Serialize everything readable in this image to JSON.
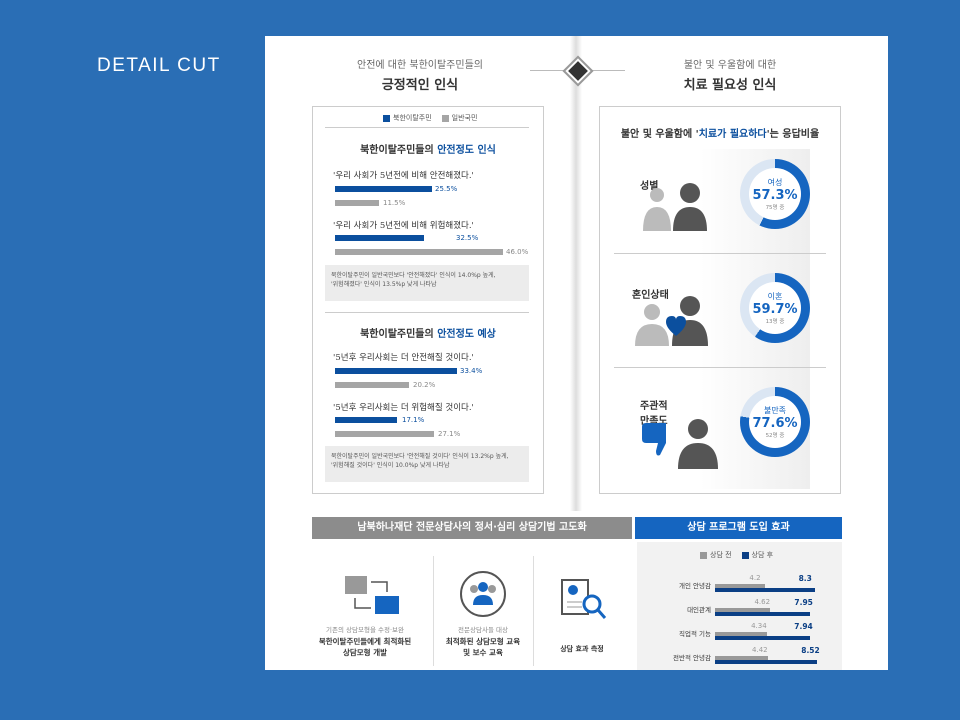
{
  "detail_label": "DETAIL  CUT",
  "colors": {
    "background": "#2a6eb5",
    "nk": "#0b4f9e",
    "general": "#a5a5a5",
    "band_gray": "#8c8c8c",
    "band_blue": "#1565c0"
  },
  "left_header": {
    "sub": "안전에 대한 북한이탈주민들의",
    "title": "긍정적인 인식"
  },
  "right_header": {
    "sub": "불안 및 우울함에 대한",
    "title": "치료 필요성 인식"
  },
  "legend": {
    "nk": "북한이탈주민",
    "general": "일반국민"
  },
  "safety_now": {
    "title_pre": "북한이탈주민들의 ",
    "title_hi": "안전정도 인식",
    "q1": "'우리 사회가 5년전에 비해 안전해졌다.'",
    "q1_nk": "25.5%",
    "q1_gen": "11.5%",
    "q2": "'우리 사회가 5년전에 비해 위험해졌다.'",
    "q2_nk": "32.5%",
    "q2_gen": "46.0%",
    "note1": "북한이탈주민이 일반국민보다 '안전해졌다' 인식이 14.0%p 높게,",
    "note2": "'위험해졌다' 인식이 13.5%p 낮게 나타남"
  },
  "safety_future": {
    "title_pre": "북한이탈주민들의 ",
    "title_hi": "안전정도 예상",
    "q1": "'5년후 우리사회는 더 안전해질 것이다.'",
    "q1_nk": "33.4%",
    "q1_gen": "20.2%",
    "q2": "'5년후 우리사회는 더 위험해질 것이다.'",
    "q2_nk": "17.1%",
    "q2_gen": "27.1%",
    "note1": "북한이탈주민이 일반국민보다 '안전해질 것이다' 인식이 13.2%p 높게,",
    "note2": "'위험해질 것이다' 인식이 10.0%p 낮게 나타남"
  },
  "need": {
    "title_pre": "불안 및 우울함에 '",
    "title_hi": "치료가 필요하다",
    "title_post": "'는 응답비율",
    "items": [
      {
        "label": "성별",
        "cat": "여성",
        "pct": "57.3%",
        "n": "75명 중",
        "value": 57.3
      },
      {
        "label": "혼인상태",
        "cat": "이혼",
        "pct": "59.7%",
        "n": "13명 중",
        "value": 59.7
      },
      {
        "label": "주관적\n만족도",
        "cat": "불만족",
        "pct": "77.6%",
        "n": "52명 중",
        "value": 77.6
      }
    ]
  },
  "bottom": {
    "band_left": "남북하나재단 전문상담사의 정서·심리 상담기법 고도화",
    "band_right": "상담 프로그램 도입 효과",
    "col1_small": "기존의 상담모형을 수정·보완",
    "col1_b1": "북한이탈주민들에게 최적화된",
    "col1_b2": "상담모형 개발",
    "col2_small": "전문상담사들 대상",
    "col2_b1": "최적화된 상담모형 교육",
    "col2_b2": "및 보수 교육",
    "col3": "상담 효과 측정",
    "legend_before": "상담 전",
    "legend_after": "상담 후"
  },
  "chart_data": {
    "type": "bar",
    "categories": [
      "개인 안녕감",
      "대인관계",
      "직업적 기능",
      "전반적 안녕감"
    ],
    "series": [
      {
        "name": "상담 전",
        "values": [
          4.2,
          4.62,
          4.34,
          4.42
        ]
      },
      {
        "name": "상담 후",
        "values": [
          8.3,
          7.95,
          7.94,
          8.52
        ]
      }
    ]
  }
}
